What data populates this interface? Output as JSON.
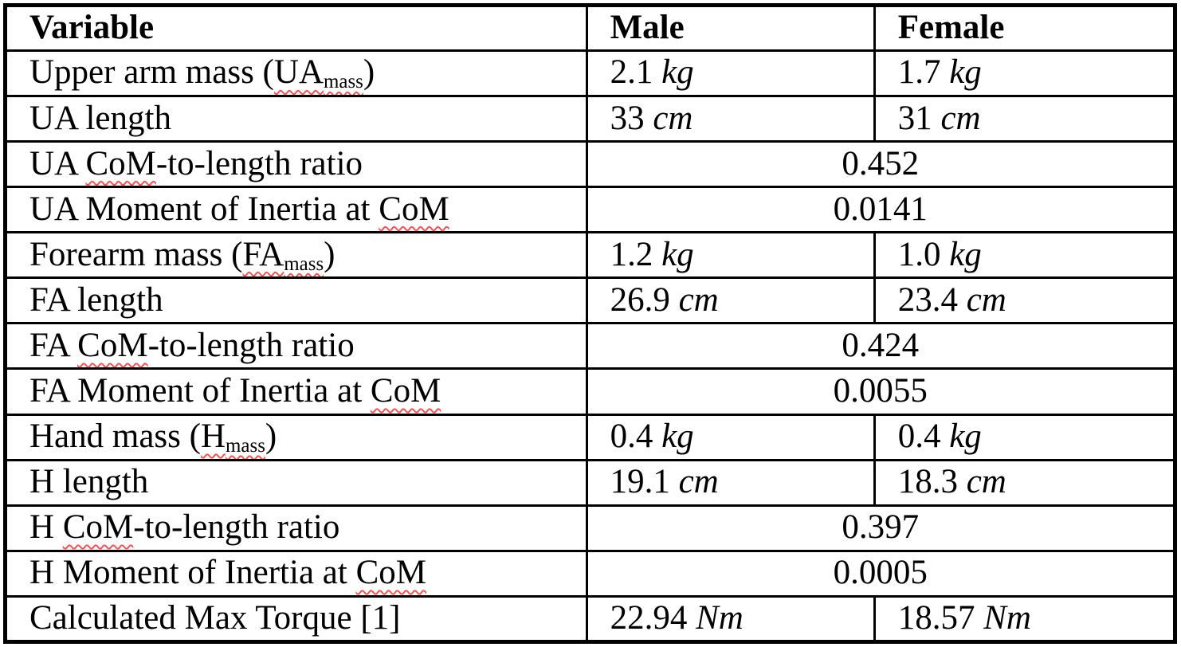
{
  "colors": {
    "background": "#ffffff",
    "border": "#000000",
    "text": "#000000",
    "squiggle": "#ff5050"
  },
  "table": {
    "headers": [
      "Variable",
      "Male",
      "Female"
    ],
    "rows": [
      {
        "label_segments": [
          {
            "t": "Upper arm mass ("
          },
          {
            "t": "UA",
            "sq": true
          },
          {
            "t": "mass",
            "sub": true,
            "sq": true
          },
          {
            "t": ")"
          }
        ],
        "cells": [
          {
            "v": "2.1",
            "u": "kg"
          },
          {
            "v": "1.7",
            "u": "kg"
          }
        ]
      },
      {
        "label_segments": [
          {
            "t": "UA length"
          }
        ],
        "cells": [
          {
            "v": "33",
            "u": "cm"
          },
          {
            "v": "31",
            "u": "cm"
          }
        ]
      },
      {
        "label_segments": [
          {
            "t": "UA "
          },
          {
            "t": "CoM",
            "sq": true
          },
          {
            "t": "-to-length ratio"
          }
        ],
        "merged": "0.452"
      },
      {
        "label_segments": [
          {
            "t": "UA Moment of Inertia at "
          },
          {
            "t": "CoM",
            "sq": true
          }
        ],
        "merged": "0.0141"
      },
      {
        "label_segments": [
          {
            "t": "Forearm mass ("
          },
          {
            "t": "FA",
            "sq": true
          },
          {
            "t": "mass",
            "sub": true,
            "sq": true
          },
          {
            "t": ")"
          }
        ],
        "cells": [
          {
            "v": "1.2",
            "u": "kg"
          },
          {
            "v": "1.0",
            "u": "kg"
          }
        ]
      },
      {
        "label_segments": [
          {
            "t": "FA length"
          }
        ],
        "cells": [
          {
            "v": "26.9",
            "u": "cm"
          },
          {
            "v": "23.4",
            "u": "cm"
          }
        ]
      },
      {
        "label_segments": [
          {
            "t": "FA "
          },
          {
            "t": "CoM",
            "sq": true
          },
          {
            "t": "-to-length ratio"
          }
        ],
        "merged": "0.424"
      },
      {
        "label_segments": [
          {
            "t": "FA Moment of Inertia at "
          },
          {
            "t": "CoM",
            "sq": true
          }
        ],
        "merged": "0.0055"
      },
      {
        "label_segments": [
          {
            "t": "Hand mass ("
          },
          {
            "t": "H",
            "sq": true
          },
          {
            "t": "mass",
            "sub": true,
            "sq": true
          },
          {
            "t": ")"
          }
        ],
        "cells": [
          {
            "v": "0.4",
            "u": "kg"
          },
          {
            "v": "0.4",
            "u": "kg"
          }
        ]
      },
      {
        "label_segments": [
          {
            "t": "H length"
          }
        ],
        "cells": [
          {
            "v": "19.1",
            "u": "cm"
          },
          {
            "v": "18.3",
            "u": "cm"
          }
        ]
      },
      {
        "label_segments": [
          {
            "t": "H "
          },
          {
            "t": "CoM",
            "sq": true
          },
          {
            "t": "-to-length ratio"
          }
        ],
        "merged": "0.397"
      },
      {
        "label_segments": [
          {
            "t": "H Moment of Inertia at "
          },
          {
            "t": "CoM",
            "sq": true
          }
        ],
        "merged": "0.0005"
      },
      {
        "label_segments": [
          {
            "t": "Calculated Max Torque [1]"
          }
        ],
        "cells": [
          {
            "v": "22.94",
            "u": "Nm"
          },
          {
            "v": "18.57",
            "u": "Nm"
          }
        ]
      }
    ]
  }
}
